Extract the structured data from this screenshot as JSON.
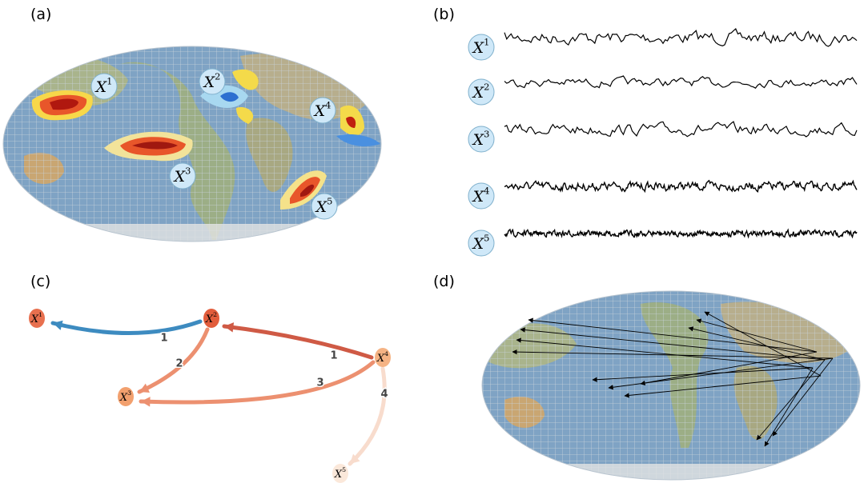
{
  "panels": {
    "a": {
      "label": "(a)",
      "regions": [
        {
          "base": "X",
          "sup": "1"
        },
        {
          "base": "X",
          "sup": "2"
        },
        {
          "base": "X",
          "sup": "3"
        },
        {
          "base": "X",
          "sup": "4"
        },
        {
          "base": "X",
          "sup": "5"
        }
      ]
    },
    "b": {
      "label": "(b)",
      "series": [
        {
          "base": "X",
          "sup": "1"
        },
        {
          "base": "X",
          "sup": "2"
        },
        {
          "base": "X",
          "sup": "3"
        },
        {
          "base": "X",
          "sup": "4"
        },
        {
          "base": "X",
          "sup": "5"
        }
      ]
    },
    "c": {
      "label": "(c)",
      "nodes": [
        {
          "base": "X",
          "sup": "1"
        },
        {
          "base": "X",
          "sup": "2"
        },
        {
          "base": "X",
          "sup": "3"
        },
        {
          "base": "X",
          "sup": "4"
        },
        {
          "base": "X",
          "sup": "5"
        }
      ],
      "edges": [
        {
          "label": "1"
        },
        {
          "label": "1"
        },
        {
          "label": "2"
        },
        {
          "label": "3"
        },
        {
          "label": "4"
        }
      ]
    },
    "d": {
      "label": "(d)"
    }
  }
}
